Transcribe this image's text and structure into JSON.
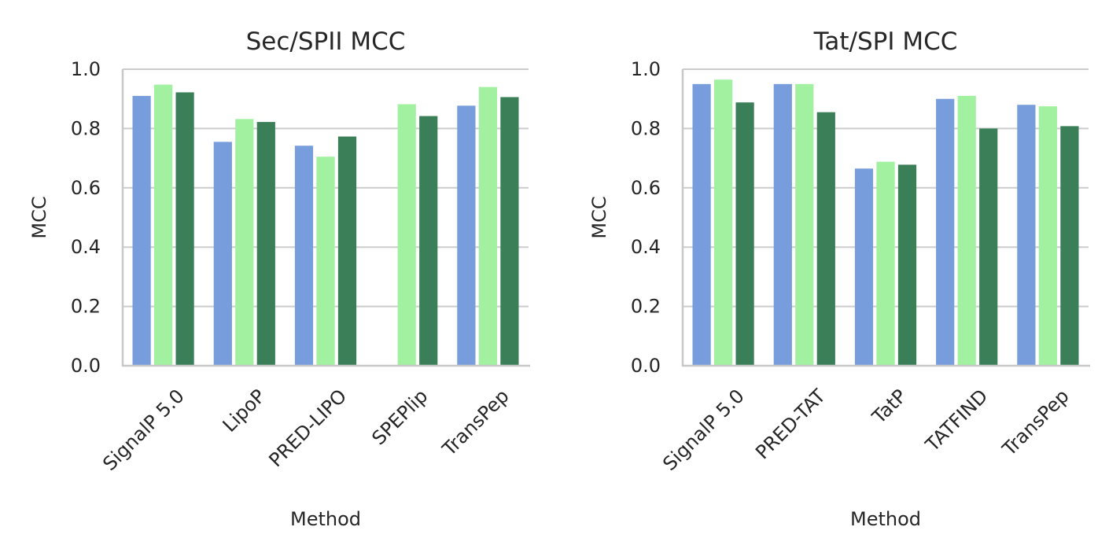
{
  "chart_data": [
    {
      "type": "bar",
      "title": "Sec/SPII MCC",
      "xlabel": "Method",
      "ylabel": "MCC",
      "ylim": [
        0,
        1
      ],
      "yticks": [
        "0.0",
        "0.2",
        "0.4",
        "0.6",
        "0.8",
        "1.0"
      ],
      "grid": "y",
      "categories": [
        "SignalP 5.0",
        "LipoP",
        "PRED-LIPO",
        "SPEPlip",
        "TransPep"
      ],
      "series": [
        {
          "color": "#779ddd",
          "values": [
            0.91,
            0.755,
            0.742,
            null,
            0.877
          ]
        },
        {
          "color": "#a2f1a0",
          "values": [
            0.948,
            0.832,
            0.705,
            0.882,
            0.94
          ]
        },
        {
          "color": "#3b7f59",
          "values": [
            0.922,
            0.822,
            0.773,
            0.842,
            0.906
          ]
        }
      ]
    },
    {
      "type": "bar",
      "title": "Tat/SPI MCC",
      "xlabel": "Method",
      "ylabel": "MCC",
      "ylim": [
        0,
        1
      ],
      "yticks": [
        "0.0",
        "0.2",
        "0.4",
        "0.6",
        "0.8",
        "1.0"
      ],
      "grid": "y",
      "categories": [
        "SignalP 5.0",
        "PRED-TAT",
        "TatP",
        "TATFIND",
        "TransPep"
      ],
      "series": [
        {
          "color": "#779ddd",
          "values": [
            0.95,
            0.95,
            0.665,
            0.9,
            0.88
          ]
        },
        {
          "color": "#a2f1a0",
          "values": [
            0.965,
            0.95,
            0.688,
            0.91,
            0.875
          ]
        },
        {
          "color": "#3b7f59",
          "values": [
            0.888,
            0.855,
            0.678,
            0.8,
            0.808
          ]
        }
      ]
    }
  ]
}
